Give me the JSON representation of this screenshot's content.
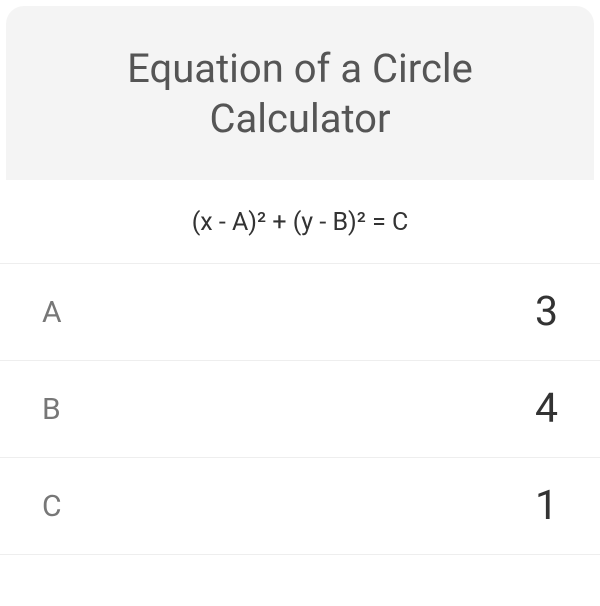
{
  "header": {
    "title": "Equation of a Circle Calculator"
  },
  "formula": {
    "text": "(x - A)² + (y - B)² = C"
  },
  "rows": [
    {
      "label": "A",
      "value": "3"
    },
    {
      "label": "B",
      "value": "4"
    },
    {
      "label": "C",
      "value": "1"
    }
  ],
  "colors": {
    "header_bg": "#f4f4f4",
    "title_color": "#555555",
    "formula_color": "#333333",
    "label_color": "#777777",
    "value_color": "#333333",
    "divider_color": "#eeeeee",
    "background": "#ffffff"
  },
  "typography": {
    "title_fontsize": 40,
    "formula_fontsize": 25,
    "label_fontsize": 30,
    "value_fontsize": 41
  }
}
